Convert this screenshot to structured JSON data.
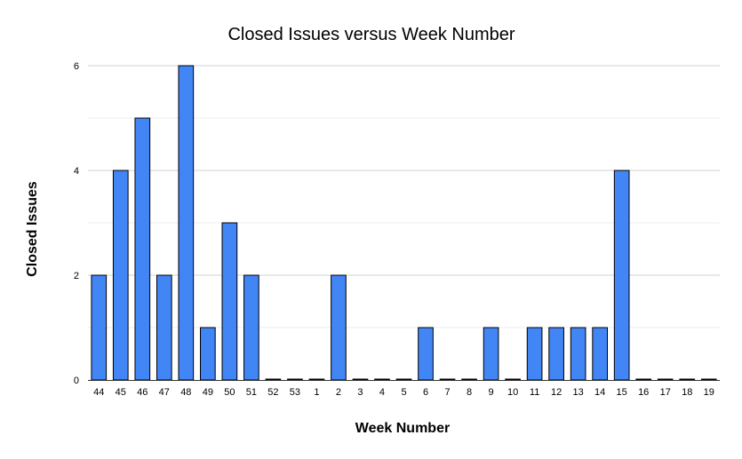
{
  "chart_data": {
    "type": "bar",
    "title": "Closed Issues versus Week Number",
    "xlabel": "Week Number",
    "ylabel": "Closed Issues",
    "categories": [
      "44",
      "45",
      "46",
      "47",
      "48",
      "49",
      "50",
      "51",
      "52",
      "53",
      "1",
      "2",
      "3",
      "4",
      "5",
      "6",
      "7",
      "8",
      "9",
      "10",
      "11",
      "12",
      "13",
      "14",
      "15",
      "16",
      "17",
      "18",
      "19"
    ],
    "values": [
      2,
      4,
      5,
      2,
      6,
      1,
      3,
      2,
      0,
      0,
      0,
      2,
      0,
      0,
      0,
      1,
      0,
      0,
      1,
      0,
      1,
      1,
      1,
      1,
      4,
      0,
      0,
      0,
      0
    ],
    "ylim": [
      0,
      6
    ],
    "yticks": [
      0,
      2,
      4,
      6
    ],
    "grid": true,
    "legend": "none",
    "bar_color": "#4285f4",
    "bar_stroke": "#000000"
  }
}
